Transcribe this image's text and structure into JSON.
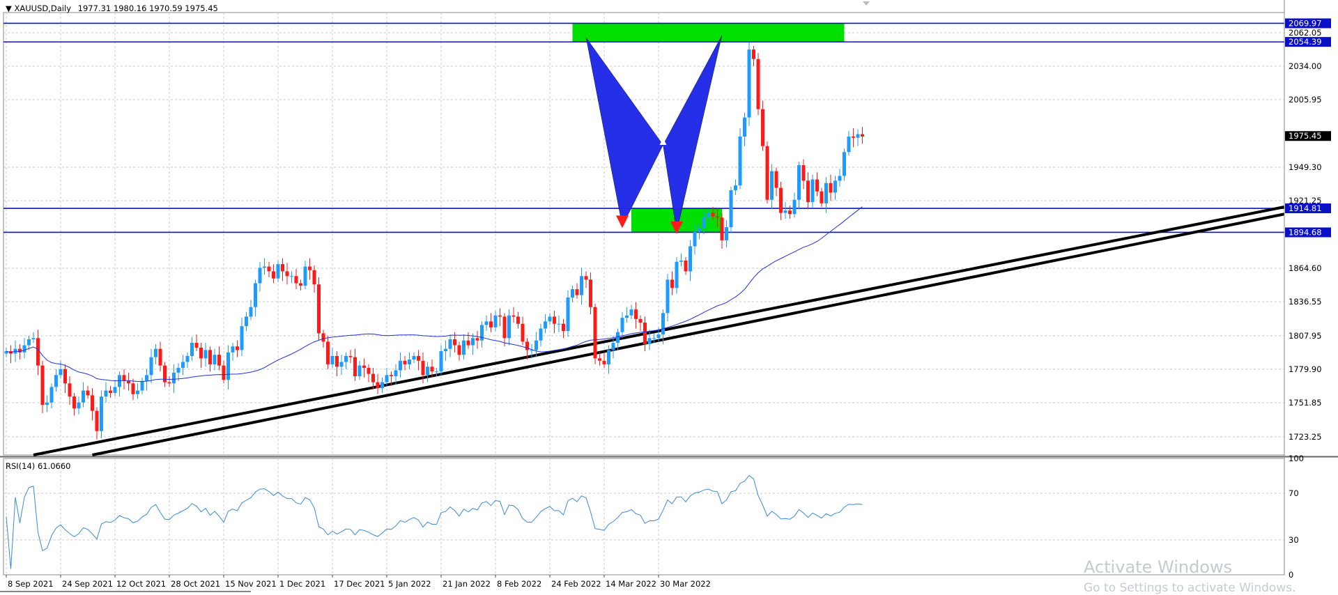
{
  "chart_header": {
    "symbol": "XAUUSD,Daily",
    "ohlc": "1977.31 1980.16 1970.59 1975.45"
  },
  "rsi_header": {
    "label": "RSI(14) 61.0660"
  },
  "watermark": {
    "line1": "Activate Windows",
    "line2": "Go to Settings to activate Windows."
  },
  "colors": {
    "bull": "#1e9bff",
    "bear": "#ff1a1a",
    "ma": "#2030d8",
    "hline": "#0a10c8",
    "zone": "#00e000",
    "pattern": "#1e28e6",
    "pattern_point": "#ff1a1a",
    "trendline": "#000000",
    "rsi": "#3a8ad8",
    "grid": "#c8c8c8"
  },
  "chart_data": [
    {
      "type": "candlestick",
      "title": "XAUUSD,Daily",
      "ylim": [
        1708,
        2079
      ],
      "price_ticks": [
        "2069.97",
        "2062.05",
        "2054.39",
        "2034.00",
        "2005.95",
        "1975.45",
        "1949.30",
        "1921.25",
        "1914.81",
        "1894.68",
        "1864.60",
        "1836.55",
        "1807.95",
        "1779.90",
        "1751.85",
        "1723.25"
      ],
      "price_tick_values": [
        2069.97,
        2062.05,
        2054.39,
        2034.0,
        2005.95,
        1975.45,
        1949.3,
        1921.25,
        1914.81,
        1894.68,
        1864.6,
        1836.55,
        1807.95,
        1779.9,
        1751.85,
        1723.25
      ],
      "highlighted_ticks": [
        "2069.97",
        "2054.39",
        "1914.81",
        "1894.68",
        "1975.45"
      ],
      "date_ticks": [
        "8 Sep 2021",
        "24 Sep 2021",
        "12 Oct 2021",
        "28 Oct 2021",
        "15 Nov 2021",
        "1 Dec 2021",
        "17 Dec 2021",
        "5 Jan 2022",
        "21 Jan 2022",
        "8 Feb 2022",
        "24 Feb 2022",
        "14 Mar 2022",
        "30 Mar 2022"
      ],
      "date_tick_index": [
        0,
        12,
        24,
        36,
        48,
        60,
        72,
        84,
        96,
        108,
        120,
        132,
        144
      ],
      "close": [
        1795,
        1793,
        1797,
        1794,
        1800,
        1805,
        1806,
        1783,
        1750,
        1752,
        1765,
        1775,
        1780,
        1768,
        1757,
        1747,
        1752,
        1762,
        1758,
        1745,
        1728,
        1757,
        1762,
        1760,
        1765,
        1775,
        1770,
        1768,
        1759,
        1762,
        1770,
        1775,
        1790,
        1797,
        1783,
        1769,
        1768,
        1777,
        1781,
        1786,
        1791,
        1802,
        1798,
        1789,
        1796,
        1784,
        1792,
        1783,
        1771,
        1794,
        1799,
        1796,
        1816,
        1824,
        1832,
        1852,
        1865,
        1866,
        1862,
        1856,
        1868,
        1862,
        1858,
        1858,
        1852,
        1850,
        1866,
        1863,
        1851,
        1810,
        1803,
        1784,
        1791,
        1782,
        1786,
        1791,
        1790,
        1774,
        1783,
        1781,
        1776,
        1769,
        1764,
        1769,
        1775,
        1774,
        1779,
        1787,
        1784,
        1788,
        1791,
        1787,
        1775,
        1782,
        1778,
        1778,
        1795,
        1797,
        1805,
        1800,
        1792,
        1804,
        1800,
        1806,
        1804,
        1817,
        1820,
        1815,
        1825,
        1824,
        1806,
        1825,
        1824,
        1818,
        1803,
        1796,
        1796,
        1804,
        1814,
        1820,
        1824,
        1818,
        1818,
        1812,
        1840,
        1847,
        1842,
        1858,
        1855,
        1832,
        1789,
        1787,
        1784,
        1796,
        1802,
        1811,
        1823,
        1825,
        1830,
        1822,
        1819,
        1801,
        1806,
        1806,
        1809,
        1827,
        1855,
        1848,
        1870,
        1871,
        1862,
        1883,
        1895,
        1898,
        1907,
        1911,
        1908,
        1907,
        1888,
        1899,
        1930,
        1934,
        1975,
        1991,
        2048,
        2040,
        1998,
        1967,
        1922,
        1946,
        1932,
        1911,
        1913,
        1910,
        1922,
        1951,
        1938,
        1920,
        1939,
        1929,
        1919,
        1936,
        1928,
        1938,
        1942,
        1962,
        1975,
        1974,
        1977,
        1975
      ],
      "ma_label": "MA",
      "indicator": {
        "name": "RSI(14)",
        "value": 61.066,
        "ylim": [
          0,
          100
        ],
        "ticks": [
          "100",
          "70",
          "30",
          "0"
        ],
        "tick_values": [
          100,
          70,
          30,
          0
        ]
      },
      "horizontal_levels": [
        2069.97,
        2054.39,
        1914.81,
        1894.68
      ],
      "zones": [
        {
          "from_index": 125,
          "to_index": 185,
          "low": 2054.39,
          "high": 2069.97
        },
        {
          "from_index": 138,
          "to_index": 158,
          "low": 1894.68,
          "high": 1914.81
        }
      ],
      "pattern_points": [
        {
          "index": 128,
          "price": 2058
        },
        {
          "index": 136,
          "price": 1900
        },
        {
          "index": 145,
          "price": 1968
        },
        {
          "index": 148,
          "price": 1895
        },
        {
          "index": 158,
          "price": 2060
        }
      ]
    }
  ]
}
